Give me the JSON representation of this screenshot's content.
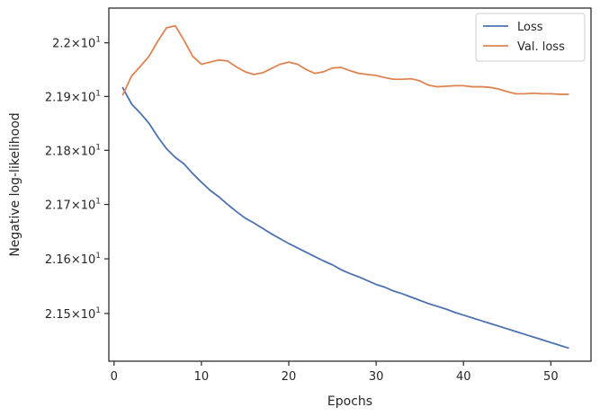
{
  "chart_data": {
    "type": "line",
    "xlabel": "Epochs",
    "ylabel": "Negative log-likelihood",
    "xlim": [
      -0.6,
      54.6
    ],
    "ylim": [
      21.413,
      22.065
    ],
    "y_scale": "log",
    "grid": false,
    "legend_position": "top-right",
    "x_ticks": [
      0,
      10,
      20,
      30,
      40,
      50
    ],
    "x_tick_labels": [
      "0",
      "10",
      "20",
      "30",
      "40",
      "50"
    ],
    "y_ticks": [
      21.5,
      21.6,
      21.7,
      21.8,
      21.9,
      22.0
    ],
    "y_tick_labels": [
      {
        "mantissa": "2.15",
        "base": "10",
        "exp": "1"
      },
      {
        "mantissa": "2.16",
        "base": "10",
        "exp": "1"
      },
      {
        "mantissa": "2.17",
        "base": "10",
        "exp": "1"
      },
      {
        "mantissa": "2.18",
        "base": "10",
        "exp": "1"
      },
      {
        "mantissa": "2.19",
        "base": "10",
        "exp": "1"
      },
      {
        "mantissa": "2.2",
        "base": "10",
        "exp": "1"
      }
    ],
    "x": [
      1,
      2,
      3,
      4,
      5,
      6,
      7,
      8,
      9,
      10,
      11,
      12,
      13,
      14,
      15,
      16,
      17,
      18,
      19,
      20,
      21,
      22,
      23,
      24,
      25,
      26,
      27,
      28,
      29,
      30,
      31,
      32,
      33,
      34,
      35,
      36,
      37,
      38,
      39,
      40,
      41,
      42,
      43,
      44,
      45,
      46,
      47,
      48,
      49,
      50,
      51,
      52
    ],
    "series": [
      {
        "name": "Loss",
        "color": "#4c72b0",
        "values": [
          21.916,
          21.886,
          21.869,
          21.85,
          21.825,
          21.803,
          21.787,
          21.775,
          21.757,
          21.741,
          21.726,
          21.714,
          21.7,
          21.687,
          21.675,
          21.666,
          21.656,
          21.646,
          21.637,
          21.628,
          21.62,
          21.612,
          21.604,
          21.596,
          21.589,
          21.58,
          21.573,
          21.567,
          21.56,
          21.553,
          21.548,
          21.541,
          21.536,
          21.53,
          21.524,
          21.518,
          21.513,
          21.508,
          21.502,
          21.497,
          21.492,
          21.487,
          21.482,
          21.477,
          21.472,
          21.467,
          21.462,
          21.457,
          21.452,
          21.447,
          21.442,
          21.437
        ]
      },
      {
        "name": "Val. loss",
        "color": "#dd8452",
        "values": [
          21.903,
          21.938,
          21.956,
          21.975,
          22.003,
          22.028,
          22.032,
          22.005,
          21.975,
          21.96,
          21.964,
          21.968,
          21.966,
          21.955,
          21.946,
          21.941,
          21.944,
          21.952,
          21.96,
          21.964,
          21.96,
          21.95,
          21.943,
          21.946,
          21.953,
          21.954,
          21.948,
          21.943,
          21.941,
          21.939,
          21.935,
          21.932,
          21.932,
          21.933,
          21.929,
          21.921,
          21.918,
          21.919,
          21.92,
          21.92,
          21.918,
          21.918,
          21.917,
          21.914,
          21.909,
          21.905,
          21.905,
          21.906,
          21.905,
          21.905,
          21.904,
          21.904
        ]
      }
    ]
  }
}
